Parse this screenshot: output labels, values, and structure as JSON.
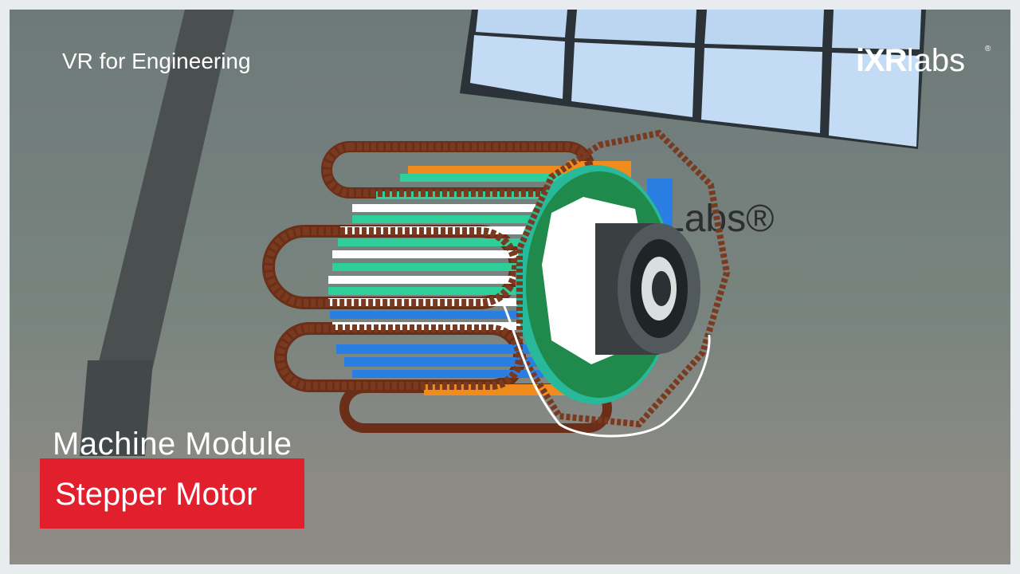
{
  "header": {
    "tagline": "VR for Engineering"
  },
  "brand": {
    "logo_name": "ixr-labs-logo",
    "logo_text_bold": "iXR",
    "logo_text_light": "labs",
    "registered_mark": "®",
    "wall_sign_text": "Labs®"
  },
  "caption": {
    "module_title": "Machine Module",
    "topic_title": "Stepper Motor",
    "topic_badge_color": "#e21f2d"
  },
  "scene": {
    "subject_icon": "stepper-motor-3d-model",
    "coil_color": "#7a3a1f",
    "stator_colors": [
      "#ffffff",
      "#2ecf9a",
      "#2a7de1",
      "#f08c1e"
    ],
    "rotor_gear_color": "#1f8a4c",
    "shaft_color": "#3a3f42",
    "window_color": "#bcd6f2"
  }
}
